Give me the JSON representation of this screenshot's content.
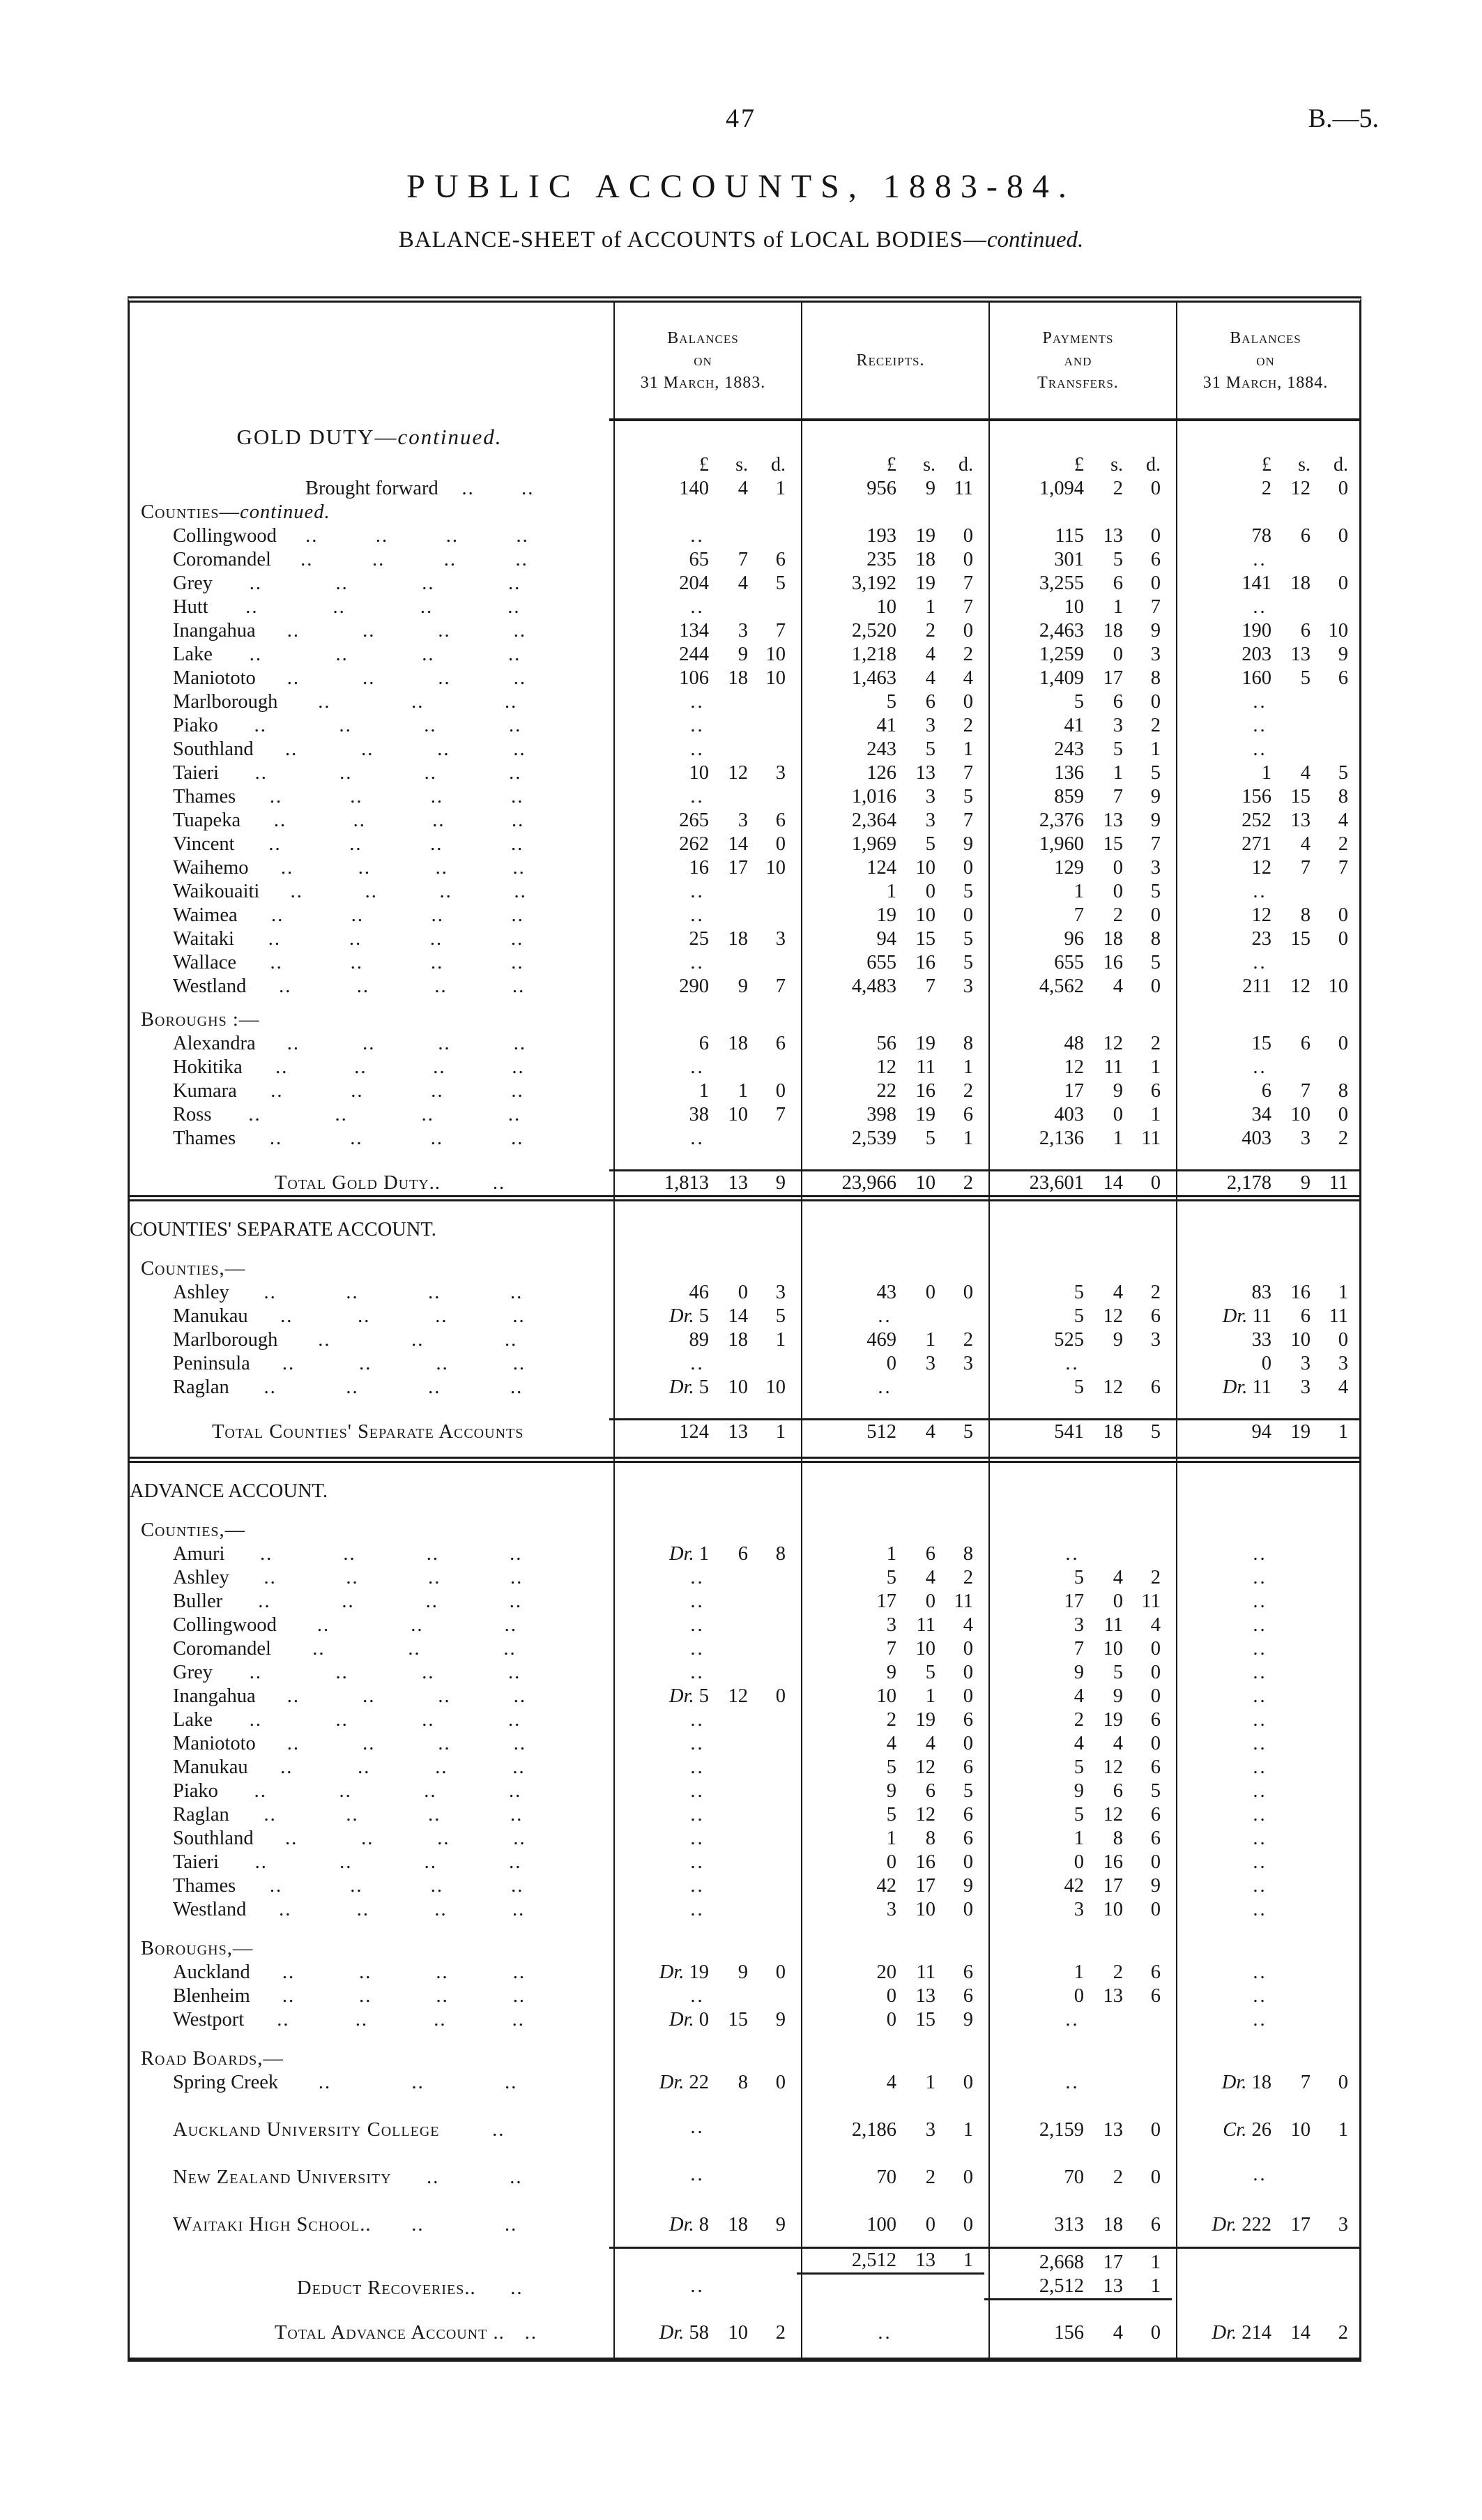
{
  "page": {
    "number": "47",
    "doc_ref": "B.—5.",
    "title": "PUBLIC  ACCOUNTS,  1883-84.",
    "subtitle_prefix": "BALANCE-SHEET of ACCOUNTS of LOCAL BODIES—",
    "subtitle_italic": "continued."
  },
  "table": {
    "columns": [
      {
        "lines": [
          "Balances",
          "on",
          "31 March, 1883."
        ]
      },
      {
        "lines": [
          "Receipts."
        ]
      },
      {
        "lines": [
          "Payments",
          "and",
          "Transfers."
        ]
      },
      {
        "lines": [
          "Balances",
          "on",
          "31 March, 1884."
        ]
      }
    ],
    "currency_header": [
      "£",
      "s.",
      "d."
    ],
    "sections": [
      {
        "rows": [
          {
            "t": "heading",
            "label": "GOLD DUTY—",
            "label_it": "continued."
          },
          {
            "t": "currency"
          },
          {
            "t": "brought",
            "label": "Brought forward",
            "dots": 2,
            "a": [
              "140 4 1",
              "956 9 11",
              "1,094 2 0",
              "2 12 0"
            ]
          },
          {
            "t": "sub",
            "label": "Counties—",
            "label_it": "continued."
          },
          {
            "t": "item",
            "label": "Collingwood",
            "dots": 4,
            "a": [
              null,
              "193 19 0",
              "115 13 0",
              "78 6 0"
            ]
          },
          {
            "t": "item",
            "label": "Coromandel",
            "dots": 4,
            "a": [
              "65 7 6",
              "235 18 0",
              "301 5 6",
              null
            ]
          },
          {
            "t": "item",
            "label": "Grey",
            "dots": 4,
            "a": [
              "204 4 5",
              "3,192 19 7",
              "3,255 6 0",
              "141 18 0"
            ]
          },
          {
            "t": "item",
            "label": "Hutt",
            "dots": 4,
            "a": [
              null,
              "10 1 7",
              "10 1 7",
              null
            ]
          },
          {
            "t": "item",
            "label": "Inangahua",
            "dots": 4,
            "a": [
              "134 3 7",
              "2,520 2 0",
              "2,463 18 9",
              "190 6 10"
            ]
          },
          {
            "t": "item",
            "label": "Lake",
            "dots": 4,
            "a": [
              "244 9 10",
              "1,218 4 2",
              "1,259 0 3",
              "203 13 9"
            ]
          },
          {
            "t": "item",
            "label": "Maniototo",
            "dots": 4,
            "a": [
              "106 18 10",
              "1,463 4 4",
              "1,409 17 8",
              "160 5 6"
            ]
          },
          {
            "t": "item",
            "label": "Marlborough",
            "dots": 3,
            "a": [
              null,
              "5 6 0",
              "5 6 0",
              null
            ]
          },
          {
            "t": "item",
            "label": "Piako",
            "dots": 4,
            "a": [
              null,
              "41 3 2",
              "41 3 2",
              null
            ]
          },
          {
            "t": "item",
            "label": "Southland",
            "dots": 4,
            "a": [
              null,
              "243 5 1",
              "243 5 1",
              null
            ]
          },
          {
            "t": "item",
            "label": "Taieri",
            "dots": 4,
            "a": [
              "10 12 3",
              "126 13 7",
              "136 1 5",
              "1 4 5"
            ]
          },
          {
            "t": "item",
            "label": "Thames",
            "dots": 4,
            "a": [
              null,
              "1,016 3 5",
              "859 7 9",
              "156 15 8"
            ]
          },
          {
            "t": "item",
            "label": "Tuapeka",
            "dots": 4,
            "a": [
              "265 3 6",
              "2,364 3 7",
              "2,376 13 9",
              "252 13 4"
            ]
          },
          {
            "t": "item",
            "label": "Vincent",
            "dots": 4,
            "a": [
              "262 14 0",
              "1,969 5 9",
              "1,960 15 7",
              "271 4 2"
            ]
          },
          {
            "t": "item",
            "label": "Waihemo",
            "dots": 4,
            "a": [
              "16 17 10",
              "124 10 0",
              "129 0 3",
              "12 7 7"
            ]
          },
          {
            "t": "item",
            "label": "Waikouaiti",
            "dots": 4,
            "a": [
              null,
              "1 0 5",
              "1 0 5",
              null
            ]
          },
          {
            "t": "item",
            "label": "Waimea",
            "dots": 4,
            "a": [
              null,
              "19 10 0",
              "7 2 0",
              "12 8 0"
            ]
          },
          {
            "t": "item",
            "label": "Waitaki",
            "dots": 4,
            "a": [
              "25 18 3",
              "94 15 5",
              "96 18 8",
              "23 15 0"
            ]
          },
          {
            "t": "item",
            "label": "Wallace",
            "dots": 4,
            "a": [
              null,
              "655 16 5",
              "655 16 5",
              null
            ]
          },
          {
            "t": "item",
            "label": "Westland",
            "dots": 4,
            "a": [
              "290 9 7",
              "4,483 7 3",
              "4,562 4 0",
              "211 12 10"
            ]
          },
          {
            "t": "sub",
            "label": "Boroughs :—",
            "cls": "gap"
          },
          {
            "t": "item",
            "label": "Alexandra",
            "dots": 4,
            "a": [
              "6 18 6",
              "56 19 8",
              "48 12 2",
              "15 6 0"
            ]
          },
          {
            "t": "item",
            "label": "Hokitika",
            "dots": 4,
            "a": [
              null,
              "12 11 1",
              "12 11 1",
              null
            ]
          },
          {
            "t": "item",
            "label": "Kumara",
            "dots": 4,
            "a": [
              "1 1 0",
              "22 16 2",
              "17 9 6",
              "6 7 8"
            ]
          },
          {
            "t": "item",
            "label": "Ross",
            "dots": 4,
            "a": [
              "38 10 7",
              "398 19 6",
              "403 0 1",
              "34 10 0"
            ]
          },
          {
            "t": "item",
            "label": "Thames",
            "dots": 4,
            "a": [
              null,
              "2,539 5 1",
              "2,136 1 11",
              "403 3 2"
            ]
          },
          {
            "t": "total",
            "label": "Total Gold Duty..",
            "dots": 1,
            "cls": "ruled gap",
            "a": [
              "1,813 13 9",
              "23,966 10 2",
              "23,601 14 0",
              "2,178 9 11"
            ]
          }
        ]
      },
      {
        "rows": [
          {
            "t": "h2",
            "label": "COUNTIES' SEPARATE ACCOUNT.",
            "cls": "secpadtop"
          },
          {
            "t": "sub",
            "label": "Counties,—",
            "cls": "gap2"
          },
          {
            "t": "item",
            "label": "Ashley",
            "dots": 4,
            "a": [
              "46 0 3",
              "43 0 0",
              "5 4 2",
              "83 16 1"
            ]
          },
          {
            "t": "item",
            "label": "Manukau",
            "dots": 4,
            "a": [
              "Dr. 5 14 5",
              null,
              "5 12 6",
              "Dr. 11 6 11"
            ]
          },
          {
            "t": "item",
            "label": "Marlborough",
            "dots": 3,
            "a": [
              "89 18 1",
              "469 1 2",
              "525 9 3",
              "33 10 0"
            ]
          },
          {
            "t": "item",
            "label": "Peninsula",
            "dots": 4,
            "a": [
              null,
              "0 3 3",
              null,
              "0 3 3"
            ]
          },
          {
            "t": "item",
            "label": "Raglan",
            "dots": 4,
            "a": [
              "Dr. 5 10 10",
              null,
              "5 12 6",
              "Dr. 11 3 4"
            ]
          },
          {
            "t": "total",
            "label": "Total Counties' Separate Accounts",
            "dots": 0,
            "cls": "ruled gap total2 secpadbot",
            "a": [
              "124 13 1",
              "512 4 5",
              "541 18 5",
              "94 19 1"
            ]
          }
        ]
      },
      {
        "rows": [
          {
            "t": "h2",
            "label": "ADVANCE ACCOUNT.",
            "cls": "secpadtop"
          },
          {
            "t": "sub",
            "label": "Counties,—",
            "cls": "gap2"
          },
          {
            "t": "item",
            "label": "Amuri",
            "dots": 4,
            "a": [
              "Dr. 1 6 8",
              "1 6 8",
              null,
              null
            ]
          },
          {
            "t": "item",
            "label": "Ashley",
            "dots": 4,
            "a": [
              null,
              "5 4 2",
              "5 4 2",
              null
            ]
          },
          {
            "t": "item",
            "label": "Buller",
            "dots": 4,
            "a": [
              null,
              "17 0 11",
              "17 0 11",
              null
            ]
          },
          {
            "t": "item",
            "label": "Collingwood",
            "dots": 3,
            "a": [
              null,
              "3 11 4",
              "3 11 4",
              null
            ]
          },
          {
            "t": "item",
            "label": "Coromandel",
            "dots": 3,
            "a": [
              null,
              "7 10 0",
              "7 10 0",
              null
            ]
          },
          {
            "t": "item",
            "label": "Grey",
            "dots": 4,
            "a": [
              null,
              "9 5 0",
              "9 5 0",
              null
            ]
          },
          {
            "t": "item",
            "label": "Inangahua",
            "dots": 4,
            "a": [
              "Dr. 5 12 0",
              "10 1 0",
              "4 9 0",
              null
            ]
          },
          {
            "t": "item",
            "label": "Lake",
            "dots": 4,
            "a": [
              null,
              "2 19 6",
              "2 19 6",
              null
            ]
          },
          {
            "t": "item",
            "label": "Maniototo",
            "dots": 4,
            "a": [
              null,
              "4 4 0",
              "4 4 0",
              null
            ]
          },
          {
            "t": "item",
            "label": "Manukau",
            "dots": 4,
            "a": [
              null,
              "5 12 6",
              "5 12 6",
              null
            ]
          },
          {
            "t": "item",
            "label": "Piako",
            "dots": 4,
            "a": [
              null,
              "9 6 5",
              "9 6 5",
              null
            ]
          },
          {
            "t": "item",
            "label": "Raglan",
            "dots": 4,
            "a": [
              null,
              "5 12 6",
              "5 12 6",
              null
            ]
          },
          {
            "t": "item",
            "label": "Southland",
            "dots": 4,
            "a": [
              null,
              "1 8 6",
              "1 8 6",
              null
            ]
          },
          {
            "t": "item",
            "label": "Taieri",
            "dots": 4,
            "a": [
              null,
              "0 16 0",
              "0 16 0",
              null
            ]
          },
          {
            "t": "item",
            "label": "Thames",
            "dots": 4,
            "a": [
              null,
              "42 17 9",
              "42 17 9",
              null
            ]
          },
          {
            "t": "item",
            "label": "Westland",
            "dots": 4,
            "a": [
              null,
              "3 10 0",
              "3 10 0",
              null
            ]
          },
          {
            "t": "sub",
            "label": "Boroughs,—",
            "cls": "gap2"
          },
          {
            "t": "item",
            "label": "Auckland",
            "dots": 4,
            "a": [
              "Dr. 19 9 0",
              "20 11 6",
              "1 2 6",
              null
            ]
          },
          {
            "t": "item",
            "label": "Blenheim",
            "dots": 4,
            "a": [
              null,
              "0 13 6",
              "0 13 6",
              null
            ]
          },
          {
            "t": "item",
            "label": "Westport",
            "dots": 4,
            "a": [
              "Dr. 0 15 9",
              "0 15 9",
              null,
              null
            ]
          },
          {
            "t": "sub",
            "label": "Road Boards,—",
            "cls": "gap2"
          },
          {
            "t": "item",
            "label": "Spring Creek",
            "dots": 3,
            "a": [
              "Dr. 22 8 0",
              "4 1 0",
              null,
              "Dr. 18 7 0"
            ]
          },
          {
            "t": "inst",
            "label": "Auckland University College",
            "dots": 1,
            "cls": "sp",
            "a": [
              null,
              "2,186 3 1",
              "2,159 13 0",
              "Cr. 26 10 1"
            ]
          },
          {
            "t": "inst",
            "label": "New Zealand University",
            "dots": 2,
            "cls": "sp",
            "a": [
              null,
              "70 2 0",
              "70 2 0",
              null
            ]
          },
          {
            "t": "inst",
            "label": "Waitaki High School..",
            "dots": 2,
            "cls": "sp",
            "a": [
              "Dr. 8 18 9",
              "100 0 0",
              "313 18 6",
              "Dr. 222 17 3"
            ]
          },
          {
            "t": "blank",
            "cls": "ruled rb-receipts gap",
            "a": [
              "",
              "2,512 13 1",
              "2,668 17 1",
              ""
            ]
          },
          {
            "t": "deduct",
            "label": "Deduct Recoveries..",
            "dots": 1,
            "cls": "rb-payments",
            "a": [
              null,
              "",
              "2,512 13 1",
              ""
            ]
          },
          {
            "t": "total",
            "label": "Total Advance Account ..",
            "dots": 1,
            "cls": "gap secpadbot",
            "a": [
              "Dr. 58 10 2",
              null,
              "156 4 0",
              "Dr. 214 14 2"
            ]
          }
        ]
      }
    ]
  }
}
